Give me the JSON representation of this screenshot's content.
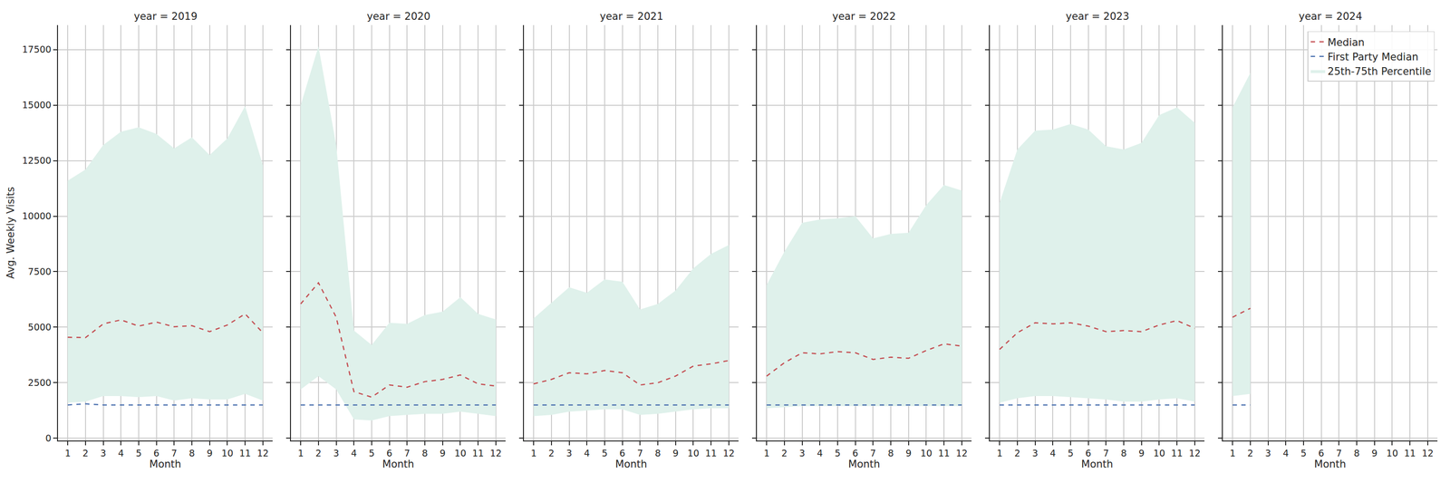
{
  "chart_data": [
    {
      "type": "line",
      "title": "year = 2019",
      "xlabel": "Month",
      "ylabel": "Avg. Weekly Visits",
      "x": [
        1,
        2,
        3,
        4,
        5,
        6,
        7,
        8,
        9,
        10,
        11,
        12
      ],
      "xlim": [
        0.45,
        12.55
      ],
      "xticks": [
        1,
        2,
        3,
        4,
        5,
        6,
        7,
        8,
        9,
        10,
        11,
        12
      ],
      "ylim": [
        -100,
        18600
      ],
      "yticks": [
        0,
        2500,
        5000,
        7500,
        10000,
        12500,
        15000,
        17500
      ],
      "grid": true,
      "series": [
        {
          "name": "Median",
          "color": "#c44e52",
          "line_style": "dashed",
          "values": [
            4550,
            4530,
            5150,
            5330,
            5050,
            5230,
            5020,
            5070,
            4800,
            5100,
            5600,
            4750
          ]
        },
        {
          "name": "First Party Median",
          "color": "#4c72b0",
          "line_style": "dashed",
          "values": [
            1500,
            1550,
            1500,
            1500,
            1500,
            1500,
            1500,
            1500,
            1500,
            1500,
            1500,
            1500
          ]
        },
        {
          "name": "25th-75th Percentile",
          "color": "#dff1eb",
          "type": "band",
          "lower": [
            1600,
            1650,
            1900,
            1900,
            1850,
            1900,
            1700,
            1800,
            1750,
            1750,
            2000,
            1700
          ],
          "upper": [
            11600,
            12100,
            13200,
            13800,
            14000,
            13700,
            13050,
            13550,
            12750,
            13500,
            14950,
            12300
          ]
        }
      ]
    },
    {
      "type": "line",
      "title": "year = 2020",
      "xlabel": "Month",
      "tick_labels": "x",
      "x": [
        1,
        2,
        3,
        4,
        5,
        6,
        7,
        8,
        9,
        10,
        11,
        12
      ],
      "xlim": [
        0.45,
        12.55
      ],
      "xticks": [
        1,
        2,
        3,
        4,
        5,
        6,
        7,
        8,
        9,
        10,
        11,
        12
      ],
      "ylim": [
        -100,
        18600
      ],
      "yticks": [
        0,
        2500,
        5000,
        7500,
        10000,
        12500,
        15000,
        17500
      ],
      "grid": true,
      "series": [
        {
          "name": "Median",
          "color": "#c44e52",
          "line_style": "dashed",
          "values": [
            6050,
            7000,
            5450,
            2100,
            1850,
            2400,
            2300,
            2550,
            2650,
            2850,
            2450,
            2350
          ]
        },
        {
          "name": "First Party Median",
          "color": "#4c72b0",
          "line_style": "dashed",
          "values": [
            1500,
            1500,
            1500,
            1500,
            1500,
            1500,
            1500,
            1500,
            1500,
            1500,
            1500,
            1500
          ]
        },
        {
          "name": "25th-75th Percentile",
          "color": "#dff1eb",
          "type": "band",
          "lower": [
            2200,
            2800,
            2200,
            850,
            800,
            1000,
            1050,
            1100,
            1100,
            1200,
            1100,
            1000
          ],
          "upper": [
            15000,
            17650,
            13200,
            4850,
            4200,
            5200,
            5150,
            5550,
            5700,
            6350,
            5600,
            5350
          ]
        }
      ]
    },
    {
      "type": "line",
      "title": "year = 2021",
      "xlabel": "Month",
      "tick_labels": "x",
      "x": [
        1,
        2,
        3,
        4,
        5,
        6,
        7,
        8,
        9,
        10,
        11,
        12
      ],
      "xlim": [
        0.45,
        12.55
      ],
      "xticks": [
        1,
        2,
        3,
        4,
        5,
        6,
        7,
        8,
        9,
        10,
        11,
        12
      ],
      "ylim": [
        -100,
        18600
      ],
      "yticks": [
        0,
        2500,
        5000,
        7500,
        10000,
        12500,
        15000,
        17500
      ],
      "grid": true,
      "series": [
        {
          "name": "Median",
          "color": "#c44e52",
          "line_style": "dashed",
          "values": [
            2450,
            2650,
            2950,
            2900,
            3050,
            2950,
            2400,
            2500,
            2800,
            3250,
            3350,
            3500
          ]
        },
        {
          "name": "First Party Median",
          "color": "#4c72b0",
          "line_style": "dashed",
          "values": [
            1500,
            1500,
            1500,
            1500,
            1500,
            1500,
            1500,
            1500,
            1500,
            1500,
            1500,
            1500
          ]
        },
        {
          "name": "25th-75th Percentile",
          "color": "#dff1eb",
          "type": "band",
          "lower": [
            1000,
            1050,
            1200,
            1250,
            1300,
            1300,
            1050,
            1100,
            1200,
            1300,
            1350,
            1350
          ],
          "upper": [
            5400,
            6100,
            6800,
            6550,
            7150,
            7050,
            5800,
            6050,
            6650,
            7650,
            8300,
            8700
          ]
        }
      ]
    },
    {
      "type": "line",
      "title": "year = 2022",
      "xlabel": "Month",
      "tick_labels": "x",
      "x": [
        1,
        2,
        3,
        4,
        5,
        6,
        7,
        8,
        9,
        10,
        11,
        12
      ],
      "xlim": [
        0.45,
        12.55
      ],
      "xticks": [
        1,
        2,
        3,
        4,
        5,
        6,
        7,
        8,
        9,
        10,
        11,
        12
      ],
      "ylim": [
        -100,
        18600
      ],
      "yticks": [
        0,
        2500,
        5000,
        7500,
        10000,
        12500,
        15000,
        17500
      ],
      "grid": true,
      "series": [
        {
          "name": "Median",
          "color": "#c44e52",
          "line_style": "dashed",
          "values": [
            2800,
            3400,
            3850,
            3800,
            3900,
            3850,
            3550,
            3650,
            3600,
            3950,
            4250,
            4150
          ]
        },
        {
          "name": "First Party Median",
          "color": "#4c72b0",
          "line_style": "dashed",
          "values": [
            1500,
            1500,
            1500,
            1500,
            1500,
            1500,
            1500,
            1500,
            1500,
            1500,
            1500,
            1500
          ]
        },
        {
          "name": "25th-75th Percentile",
          "color": "#dff1eb",
          "type": "band",
          "lower": [
            1350,
            1400,
            1450,
            1450,
            1450,
            1450,
            1450,
            1450,
            1450,
            1450,
            1450,
            1450
          ],
          "upper": [
            6900,
            8400,
            9700,
            9850,
            9900,
            10000,
            9000,
            9200,
            9250,
            10500,
            11400,
            11150
          ]
        }
      ]
    },
    {
      "type": "line",
      "title": "year = 2023",
      "xlabel": "Month",
      "tick_labels": "x",
      "x": [
        1,
        2,
        3,
        4,
        5,
        6,
        7,
        8,
        9,
        10,
        11,
        12
      ],
      "xlim": [
        0.45,
        12.55
      ],
      "xticks": [
        1,
        2,
        3,
        4,
        5,
        6,
        7,
        8,
        9,
        10,
        11,
        12
      ],
      "ylim": [
        -100,
        18600
      ],
      "yticks": [
        0,
        2500,
        5000,
        7500,
        10000,
        12500,
        15000,
        17500
      ],
      "grid": true,
      "series": [
        {
          "name": "Median",
          "color": "#c44e52",
          "line_style": "dashed",
          "values": [
            4000,
            4750,
            5200,
            5150,
            5200,
            5050,
            4800,
            4850,
            4800,
            5100,
            5300,
            4950
          ]
        },
        {
          "name": "First Party Median",
          "color": "#4c72b0",
          "line_style": "dashed",
          "values": [
            1500,
            1500,
            1500,
            1500,
            1500,
            1500,
            1500,
            1500,
            1500,
            1500,
            1500,
            1500
          ]
        },
        {
          "name": "25th-75th Percentile",
          "color": "#dff1eb",
          "type": "band",
          "lower": [
            1600,
            1800,
            1900,
            1900,
            1850,
            1800,
            1750,
            1650,
            1650,
            1750,
            1800,
            1650
          ],
          "upper": [
            10600,
            13000,
            13850,
            13900,
            14150,
            13900,
            13150,
            13000,
            13300,
            14550,
            14900,
            14200
          ]
        }
      ]
    },
    {
      "type": "line",
      "title": "year = 2024",
      "xlabel": "Month",
      "tick_labels": "x",
      "legend": "upper right",
      "x": [
        1,
        2
      ],
      "xlim": [
        0.45,
        12.55
      ],
      "xticks": [
        1,
        2,
        3,
        4,
        5,
        6,
        7,
        8,
        9,
        10,
        11,
        12
      ],
      "ylim": [
        -100,
        18600
      ],
      "yticks": [
        0,
        2500,
        5000,
        7500,
        10000,
        12500,
        15000,
        17500
      ],
      "grid": true,
      "series": [
        {
          "name": "Median",
          "color": "#c44e52",
          "line_style": "dashed",
          "values": [
            5450,
            5850
          ]
        },
        {
          "name": "First Party Median",
          "color": "#4c72b0",
          "line_style": "dashed",
          "values": [
            1500,
            1500
          ]
        },
        {
          "name": "25th-75th Percentile",
          "color": "#dff1eb",
          "type": "band",
          "lower": [
            1900,
            2000
          ],
          "upper": [
            14900,
            16450
          ]
        }
      ]
    }
  ]
}
